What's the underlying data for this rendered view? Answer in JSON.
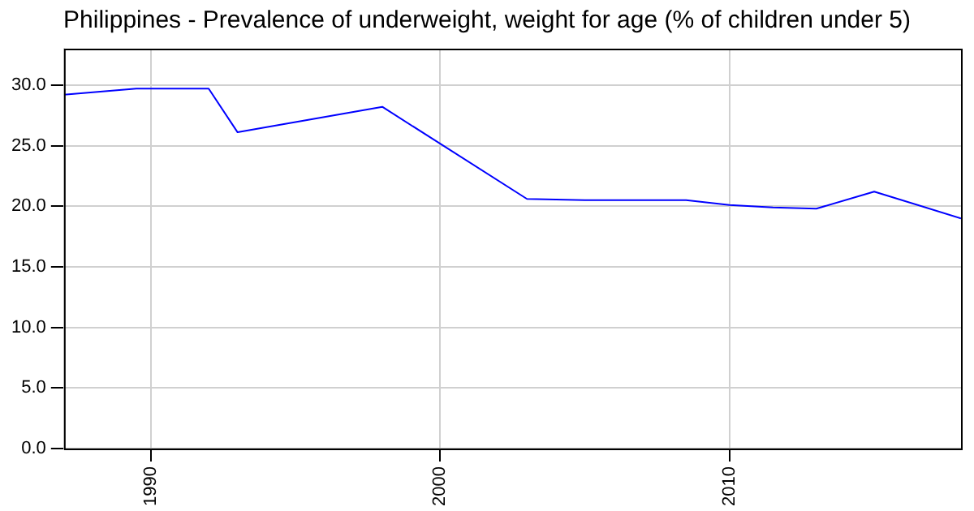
{
  "chart_data": {
    "type": "line",
    "title": "Philippines - Prevalence of underweight, weight for age (% of children under 5)",
    "x": [
      1987,
      1989.5,
      1992,
      1993,
      1998,
      2003,
      2005,
      2008.5,
      2010,
      2011.5,
      2013,
      2015,
      2018
    ],
    "series": [
      {
        "color": "#0000ff",
        "values": [
          29.2,
          29.7,
          29.7,
          26.1,
          28.2,
          20.6,
          20.5,
          20.5,
          20.1,
          19.9,
          19.8,
          21.2,
          19.0
        ]
      }
    ],
    "xlim": [
      1987,
      2018
    ],
    "xticks": [
      1990,
      2000,
      2010
    ],
    "ylim": [
      0,
      33
    ],
    "yticks": [
      {
        "value": 0,
        "label": "0.0"
      },
      {
        "value": 5,
        "label": "5.0"
      },
      {
        "value": 10,
        "label": "10.0"
      },
      {
        "value": 15,
        "label": "15.0"
      },
      {
        "value": 20,
        "label": "20.0"
      },
      {
        "value": 25,
        "label": "25.0"
      },
      {
        "value": 30,
        "label": "30.0"
      }
    ],
    "grid": true,
    "legend": false,
    "marker": "none",
    "line_style": "solid"
  }
}
